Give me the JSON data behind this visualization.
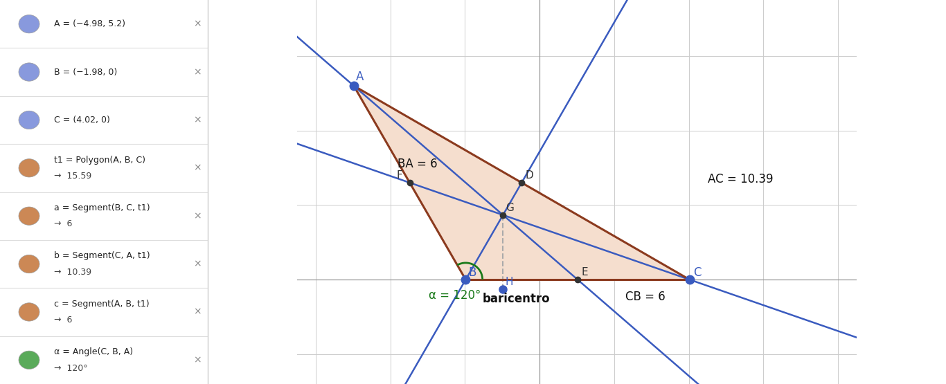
{
  "A": [
    -4.98,
    5.2
  ],
  "B": [
    -1.98,
    0
  ],
  "C": [
    4.02,
    0
  ],
  "bg_color": "#ffffff",
  "grid_color": "#cccccc",
  "triangle_fill": "#f5dece",
  "triangle_edge_color": "#8b3a1e",
  "median_color": "#3a5bbf",
  "dashed_color": "#aaaaaa",
  "point_color_dark": "#333333",
  "angle_arc_color": "#1a7a1a",
  "angle_label_color": "#1a7a1a",
  "label_color_dark": "#111111",
  "xlim": [
    -6.5,
    8.5
  ],
  "ylim": [
    -2.8,
    7.5
  ],
  "sidebar_bg": "#f8f8f8",
  "sidebar_text_color": "#222222",
  "sidebar_items": [
    {
      "color": "#8899dd",
      "label": "A = (−4.98, 5.2)",
      "arrow": null
    },
    {
      "color": "#8899dd",
      "label": "B = (−1.98, 0)",
      "arrow": null
    },
    {
      "color": "#8899dd",
      "label": "C = (4.02, 0)",
      "arrow": null
    },
    {
      "color": "#cc8855",
      "label": "t1 = Polygon(A, B, C)",
      "arrow": "15.59"
    },
    {
      "color": "#cc8855",
      "label": "a = Segment(B, C, t1)",
      "arrow": "6"
    },
    {
      "color": "#cc8855",
      "label": "b = Segment(C, A, t1)",
      "arrow": "10.39"
    },
    {
      "color": "#cc8855",
      "label": "c = Segment(A, B, t1)",
      "arrow": "6"
    },
    {
      "color": "#5aaa5a",
      "label": "α = Angle(C, B, A)",
      "arrow": "120°"
    }
  ]
}
